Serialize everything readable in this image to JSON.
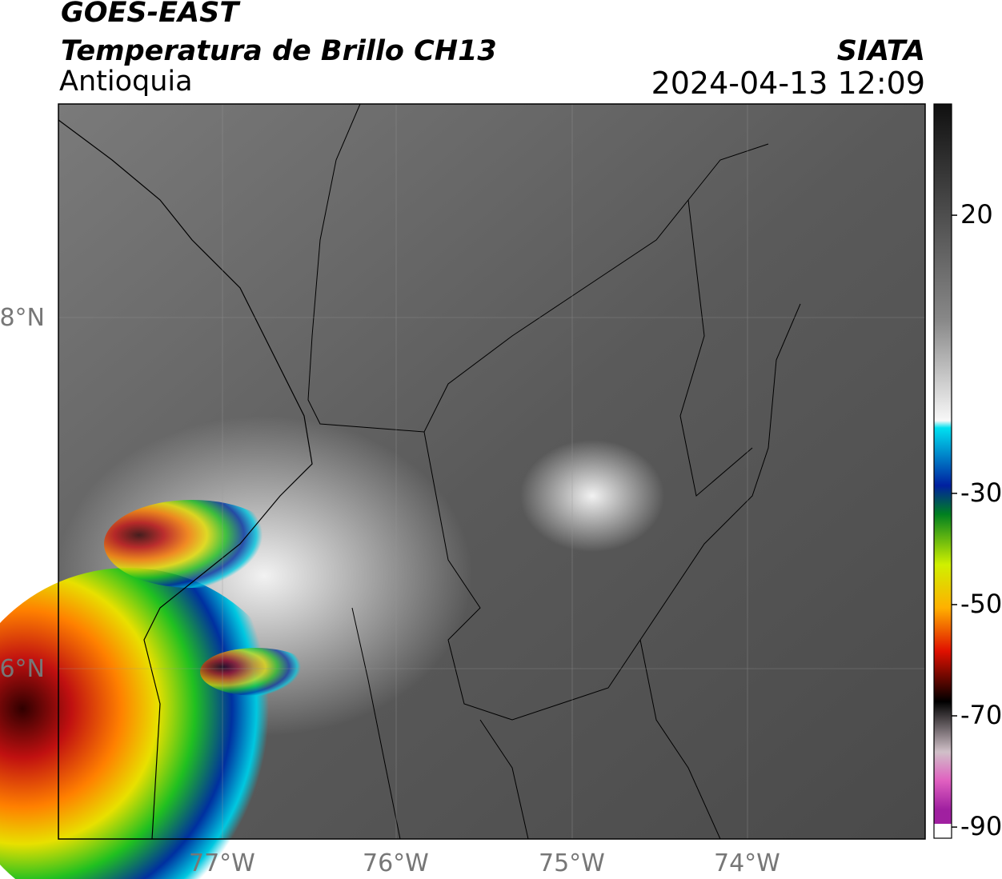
{
  "header": {
    "satellite": "GOES-EAST",
    "product": "Temperatura de Brillo CH13",
    "region": "Antioquia",
    "source": "SIATA",
    "datetime": "2024-04-13 12:09"
  },
  "map": {
    "lat_labels": [
      "8°N",
      "6°N"
    ],
    "lon_labels": [
      "77°W",
      "76°W",
      "75°W",
      "74°W"
    ]
  },
  "colorbar": {
    "lim": [
      -92,
      40
    ],
    "ticks": [
      20,
      -30,
      -50,
      -70,
      -90
    ]
  }
}
